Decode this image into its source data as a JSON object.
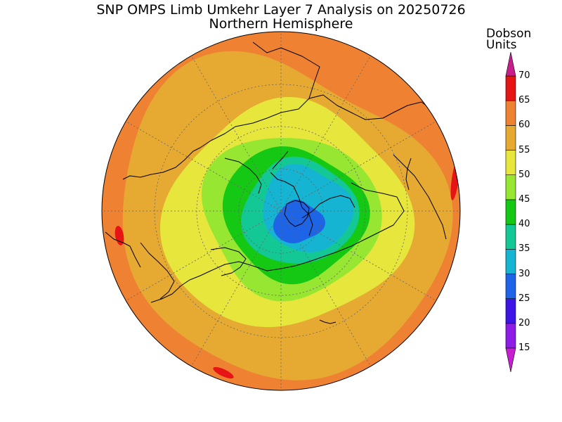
{
  "title": "SNP OMPS Limb Umkehr Layer 7 Analysis on 20250726",
  "subtitle": "Northern Hemisphere",
  "colorbar": {
    "units_line1": "Dobson",
    "units_line2": "Units",
    "levels": [
      {
        "min": 15,
        "max": 20,
        "color": "#8c1ce6"
      },
      {
        "min": 20,
        "max": 25,
        "color": "#3c14e6"
      },
      {
        "min": 25,
        "max": 30,
        "color": "#1e64e6"
      },
      {
        "min": 30,
        "max": 35,
        "color": "#14b4d2"
      },
      {
        "min": 35,
        "max": 40,
        "color": "#14c896"
      },
      {
        "min": 40,
        "max": 45,
        "color": "#14c814"
      },
      {
        "min": 45,
        "max": 50,
        "color": "#96e632"
      },
      {
        "min": 50,
        "max": 55,
        "color": "#e6e63c"
      },
      {
        "min": 55,
        "max": 60,
        "color": "#e6aa32"
      },
      {
        "min": 60,
        "max": 65,
        "color": "#ee8232"
      },
      {
        "min": 65,
        "max": 70,
        "color": "#e61414"
      }
    ],
    "below_color": "#c81ed2",
    "above_color": "#c81e8c",
    "tick_labels": [
      "15",
      "20",
      "25",
      "30",
      "35",
      "40",
      "45",
      "50",
      "55",
      "60",
      "65",
      "70"
    ]
  },
  "map": {
    "projection": "north polar stereographic",
    "hemisphere": "Northern",
    "field_value_at_pole_region": "25-30 DU",
    "field_value_at_edge": "60-65 DU",
    "coastlines": true,
    "graticule": true
  }
}
